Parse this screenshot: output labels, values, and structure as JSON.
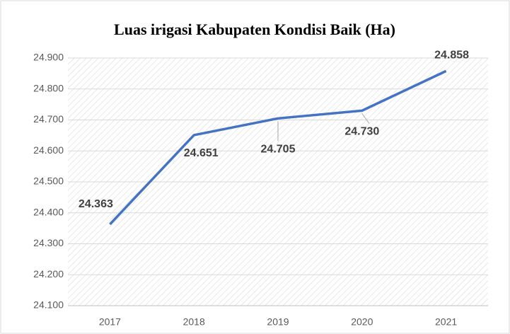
{
  "chart_data": {
    "type": "line",
    "title": "Luas irigasi Kabupaten Kondisi Baik (Ha)",
    "categories": [
      "2017",
      "2018",
      "2019",
      "2020",
      "2021"
    ],
    "series": [
      {
        "color": "#4472c4",
        "values": [
          24363,
          24651,
          24705,
          24730,
          24858
        ],
        "value_labels": [
          "24.363",
          "24.651",
          "24.705",
          "24.730",
          "24.858"
        ]
      }
    ],
    "ylim": [
      24100,
      24900
    ],
    "yticks": [
      {
        "value": 24100,
        "label": "24.100"
      },
      {
        "value": 24200,
        "label": "24.200"
      },
      {
        "value": 24300,
        "label": "24.300"
      },
      {
        "value": 24400,
        "label": "24.400"
      },
      {
        "value": 24500,
        "label": "24.500"
      },
      {
        "value": 24600,
        "label": "24.600"
      },
      {
        "value": 24700,
        "label": "24.700"
      },
      {
        "value": 24800,
        "label": "24.800"
      },
      {
        "value": 24900,
        "label": "24.900"
      }
    ],
    "grid": true
  }
}
